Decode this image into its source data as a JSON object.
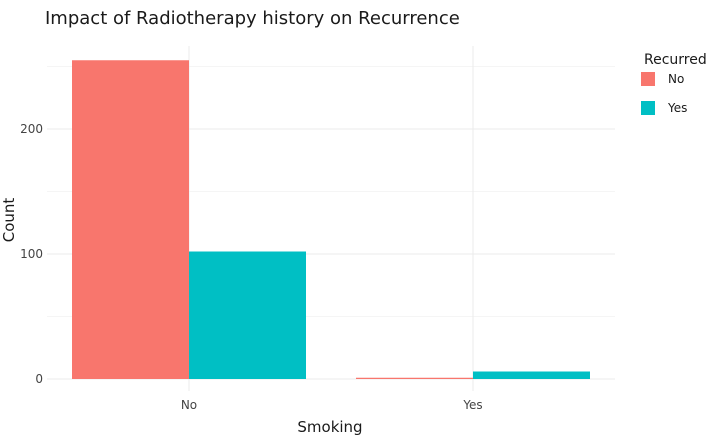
{
  "chart_data": {
    "type": "bar",
    "title": "Impact of Radiotherapy history on Recurrence",
    "xlabel": "Smoking",
    "ylabel": "Count",
    "categories": [
      "No",
      "Yes"
    ],
    "series": [
      {
        "name": "No",
        "values": [
          255,
          1
        ],
        "color": "#F8766D"
      },
      {
        "name": "Yes",
        "values": [
          102,
          6
        ],
        "color": "#00BFC4"
      }
    ],
    "ylim": [
      0,
      268
    ],
    "yticks": [
      0,
      100,
      200
    ],
    "grid": true,
    "legend": {
      "title": "Recurred",
      "position": "top-right"
    }
  }
}
